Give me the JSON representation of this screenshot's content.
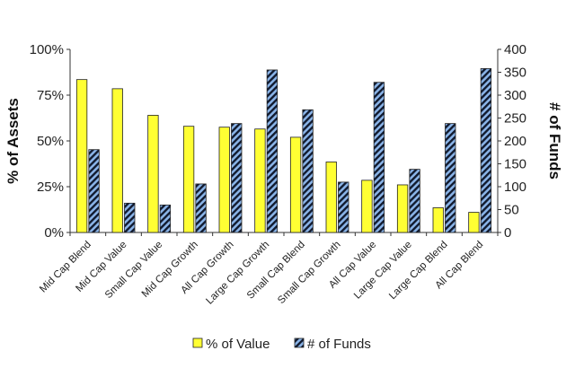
{
  "chart_data": {
    "type": "bar",
    "categories": [
      "Mid Cap Blend",
      "Mid Cap Value",
      "Small Cap Value",
      "Mid Cap Growth",
      "All Cap Growth",
      "Large Cap Growth",
      "Small Cap Blend",
      "Small Cap Growth",
      "All Cap Value",
      "Large Cap Value",
      "Large Cap Blend",
      "All Cap Blend"
    ],
    "series": [
      {
        "name": "% of Value",
        "axis": "left",
        "values": [
          83.5,
          78.5,
          64.0,
          58.0,
          57.5,
          56.5,
          52.0,
          38.5,
          28.5,
          26.0,
          13.5,
          11.0
        ],
        "color": "#ffff33"
      },
      {
        "name": "# of Funds",
        "axis": "right",
        "values": [
          181,
          64,
          60,
          106,
          238,
          355,
          268,
          110,
          328,
          138,
          238,
          358
        ],
        "color": "#8ab4e8",
        "pattern": "diagonal-stripes"
      }
    ],
    "left_axis": {
      "label": "% of Assets",
      "range": [
        0,
        100
      ],
      "ticks": [
        "0%",
        "25%",
        "50%",
        "75%",
        "100%"
      ]
    },
    "right_axis": {
      "label": "# of Funds",
      "range": [
        0,
        400
      ],
      "ticks": [
        "0",
        "50",
        "100",
        "150",
        "200",
        "250",
        "300",
        "350",
        "400"
      ]
    },
    "legend": {
      "position": "bottom",
      "entries": [
        "% of Value",
        "# of Funds"
      ]
    },
    "grid": false,
    "title": "",
    "xlabel": ""
  }
}
